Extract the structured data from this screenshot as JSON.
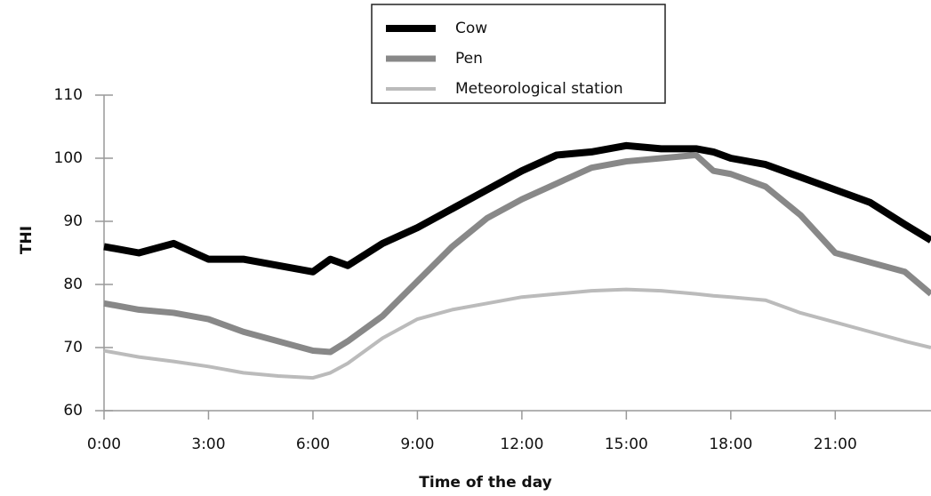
{
  "chart_data": {
    "type": "line",
    "x_label": "Time of the day",
    "y_label": "THI",
    "x": [
      0,
      1,
      2,
      3,
      4,
      5,
      6,
      6.5,
      7,
      8,
      9,
      10,
      11,
      12,
      13,
      14,
      15,
      16,
      17,
      17.5,
      18,
      19,
      20,
      21,
      22,
      23,
      23.75
    ],
    "series": [
      {
        "name": "Cow",
        "color": "#000000",
        "width": 8,
        "values": [
          86,
          85,
          86.5,
          84,
          84,
          83,
          82,
          84,
          83,
          86.5,
          89,
          92,
          95,
          98,
          100.5,
          101,
          102,
          101.5,
          101.5,
          101,
          100,
          99,
          97,
          95,
          93,
          89.5,
          87
        ]
      },
      {
        "name": "Pen",
        "color": "#888888",
        "width": 7,
        "values": [
          77,
          76,
          75.5,
          74.5,
          72.5,
          71,
          69.5,
          69.3,
          71,
          75,
          80.5,
          86,
          90.5,
          93.5,
          96,
          98.5,
          99.5,
          100,
          100.5,
          98,
          97.5,
          95.5,
          91,
          85,
          83.5,
          82,
          78.5
        ]
      },
      {
        "name": "Meteorological station",
        "color": "#bbbbbb",
        "width": 4,
        "values": [
          69.5,
          68.5,
          67.8,
          67,
          66,
          65.5,
          65.2,
          66,
          67.5,
          71.5,
          74.5,
          76,
          77,
          78,
          78.5,
          79,
          79.2,
          79,
          78.5,
          78.2,
          78,
          77.5,
          75.5,
          74,
          72.5,
          71,
          70
        ]
      }
    ],
    "xlim": [
      0,
      23.75
    ],
    "xticks": [
      {
        "value": 0,
        "label": "0:00"
      },
      {
        "value": 3,
        "label": "3:00"
      },
      {
        "value": 6,
        "label": "6:00"
      },
      {
        "value": 9,
        "label": "9:00"
      },
      {
        "value": 12,
        "label": "12:00"
      },
      {
        "value": 15,
        "label": "15:00"
      },
      {
        "value": 18,
        "label": "18:00"
      },
      {
        "value": 21,
        "label": "21:00"
      }
    ],
    "ylim": [
      60,
      110
    ],
    "yticks": [
      60,
      70,
      80,
      90,
      100,
      110
    ],
    "legend": "top"
  }
}
